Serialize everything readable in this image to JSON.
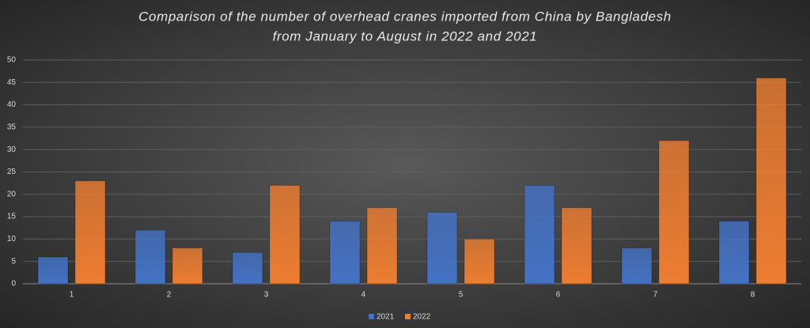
{
  "chart_data": {
    "type": "bar",
    "title": [
      "Comparison of the number of overhead cranes imported from China by Bangladesh",
      "from January to August in 2022 and 2021"
    ],
    "categories": [
      "1",
      "2",
      "3",
      "4",
      "5",
      "6",
      "7",
      "8"
    ],
    "series": [
      {
        "name": "2021",
        "color": "#4472c4",
        "values": [
          6,
          12,
          7,
          14,
          16,
          22,
          8,
          14
        ]
      },
      {
        "name": "2022",
        "color": "#ed7d31",
        "values": [
          23,
          8,
          22,
          17,
          10,
          17,
          32,
          46
        ]
      }
    ],
    "ylim": [
      0,
      50
    ],
    "yticks": [
      0,
      5,
      10,
      15,
      20,
      25,
      30,
      35,
      40,
      45,
      50
    ],
    "grid": true,
    "legend": "bottom"
  }
}
